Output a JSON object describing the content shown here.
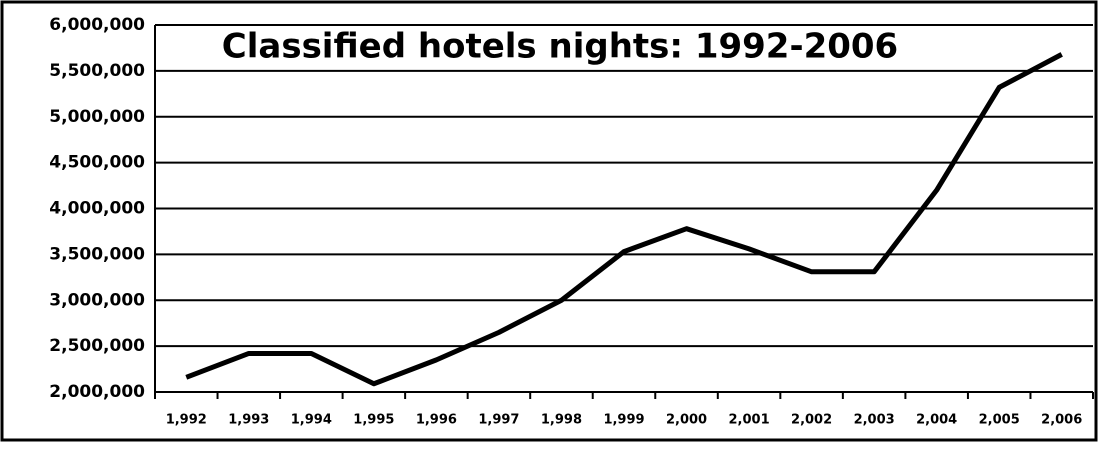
{
  "chart_data": {
    "type": "line",
    "title": "Classified hotels nights: 1992-2006",
    "categories": [
      "1,992",
      "1,993",
      "1,994",
      "1,995",
      "1,996",
      "1,997",
      "1,998",
      "1,999",
      "2,000",
      "2,001",
      "2,002",
      "2,003",
      "2,004",
      "2,005",
      "2,006"
    ],
    "series": [
      {
        "name": "Classified hotels nights",
        "color": "#000000",
        "values": [
          2160000,
          2420000,
          2420000,
          2090000,
          2350000,
          2650000,
          3000000,
          3530000,
          3780000,
          3560000,
          3310000,
          3310000,
          4200000,
          5320000,
          5680000
        ]
      }
    ],
    "ylim": [
      2000000,
      6000000
    ],
    "yticks": [
      {
        "value": 2000000,
        "label": "2,000,000"
      },
      {
        "value": 2500000,
        "label": "2,500,000"
      },
      {
        "value": 3000000,
        "label": "3,000,000"
      },
      {
        "value": 3500000,
        "label": "3,500,000"
      },
      {
        "value": 4000000,
        "label": "4,000,000"
      },
      {
        "value": 4500000,
        "label": "4,500,000"
      },
      {
        "value": 5000000,
        "label": "5,000,000"
      },
      {
        "value": 5500000,
        "label": "5,500,000"
      },
      {
        "value": 6000000,
        "label": "6,000,000"
      }
    ],
    "grid": true
  }
}
